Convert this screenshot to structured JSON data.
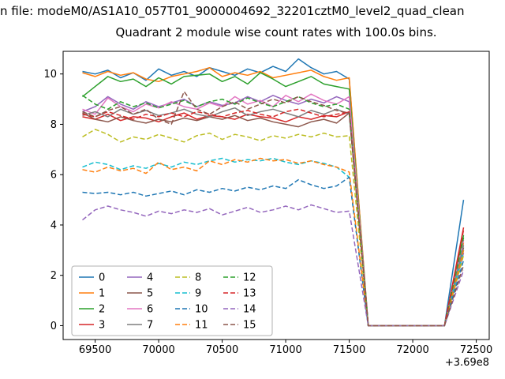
{
  "titles": {
    "suptitle": "n file: modeM0/AS1A10_057T01_9000004692_32201cztM0_level2_quad_clean",
    "title": "Quadrant 2 module wise count rates with 100.0s bins."
  },
  "chart_data": {
    "type": "line",
    "title": "Quadrant 2 module wise count rates with 100.0s bins.",
    "xlabel": "",
    "ylabel": "",
    "x_offset": "+3.69e8",
    "xlim": [
      69248,
      72602
    ],
    "ylim": [
      -0.55,
      10.9
    ],
    "x_ticks": [
      69500,
      70000,
      70500,
      71000,
      71500,
      72000,
      72500
    ],
    "y_ticks": [
      0,
      2,
      4,
      6,
      8,
      10
    ],
    "grid": false,
    "legend_position": "lower left",
    "axis_color": "#000000",
    "x": [
      69400,
      69500,
      69600,
      69700,
      69800,
      69900,
      70000,
      70100,
      70200,
      70300,
      70400,
      70500,
      70600,
      70700,
      70800,
      70900,
      71000,
      71100,
      71200,
      71300,
      71400,
      71500,
      71650,
      72250,
      72400
    ],
    "series": [
      {
        "name": "0",
        "color": "#1f77b4",
        "dash": false,
        "values": [
          10.1,
          10.0,
          10.15,
          9.85,
          10.05,
          9.75,
          10.2,
          9.95,
          10.1,
          9.9,
          10.25,
          10.1,
          9.95,
          10.2,
          10.05,
          10.3,
          10.1,
          10.6,
          10.25,
          10.0,
          10.1,
          9.8,
          0,
          0,
          5.0
        ]
      },
      {
        "name": "1",
        "color": "#ff7f0e",
        "dash": false,
        "values": [
          10.05,
          9.9,
          10.1,
          9.95,
          10.05,
          9.8,
          9.7,
          9.9,
          10.0,
          10.1,
          10.25,
          9.9,
          10.05,
          9.95,
          10.1,
          9.85,
          9.95,
          10.05,
          10.15,
          9.9,
          9.75,
          9.85,
          0,
          0,
          3.3
        ]
      },
      {
        "name": "2",
        "color": "#2ca02c",
        "dash": false,
        "values": [
          9.1,
          9.5,
          9.9,
          9.7,
          9.8,
          9.5,
          9.85,
          9.6,
          9.9,
          9.95,
          10.0,
          9.7,
          9.9,
          9.6,
          10.05,
          9.8,
          9.5,
          9.7,
          9.9,
          9.6,
          9.5,
          9.4,
          0,
          0,
          3.6
        ]
      },
      {
        "name": "3",
        "color": "#d62728",
        "dash": false,
        "values": [
          8.3,
          8.2,
          8.4,
          8.15,
          8.3,
          8.25,
          8.1,
          8.3,
          8.45,
          8.2,
          8.35,
          8.3,
          8.2,
          8.4,
          8.3,
          8.25,
          8.1,
          8.3,
          8.2,
          8.35,
          8.3,
          8.5,
          0,
          0,
          3.9
        ]
      },
      {
        "name": "4",
        "color": "#9467bd",
        "dash": false,
        "values": [
          8.5,
          8.7,
          9.1,
          8.8,
          8.6,
          8.9,
          8.7,
          8.85,
          9.0,
          8.7,
          8.9,
          8.75,
          8.85,
          9.1,
          8.9,
          9.15,
          8.95,
          8.8,
          9.0,
          8.85,
          9.1,
          8.9,
          0,
          0,
          2.9
        ]
      },
      {
        "name": "5",
        "color": "#8c564b",
        "dash": false,
        "values": [
          8.45,
          8.2,
          8.1,
          8.3,
          8.15,
          8.05,
          8.2,
          8.1,
          8.25,
          8.15,
          8.3,
          8.2,
          8.35,
          8.15,
          8.25,
          8.1,
          8.0,
          7.9,
          8.1,
          8.2,
          8.05,
          8.45,
          0,
          0,
          3.1
        ]
      },
      {
        "name": "6",
        "color": "#e377c2",
        "dash": false,
        "values": [
          8.6,
          8.4,
          9.05,
          8.7,
          8.5,
          8.8,
          8.65,
          8.9,
          8.7,
          8.6,
          8.85,
          8.7,
          9.1,
          8.8,
          8.95,
          8.7,
          9.15,
          8.9,
          9.2,
          8.95,
          8.8,
          9.1,
          0,
          0,
          3.4
        ]
      },
      {
        "name": "7",
        "color": "#7f7f7f",
        "dash": false,
        "values": [
          8.35,
          8.5,
          8.3,
          8.6,
          8.4,
          8.55,
          8.35,
          8.45,
          8.6,
          8.4,
          8.3,
          8.5,
          8.65,
          8.35,
          8.5,
          8.6,
          8.45,
          8.3,
          8.55,
          8.4,
          8.6,
          8.4,
          0,
          0,
          3.2
        ]
      },
      {
        "name": "8",
        "color": "#bcbd22",
        "dash": true,
        "values": [
          7.5,
          7.8,
          7.6,
          7.3,
          7.5,
          7.4,
          7.6,
          7.45,
          7.3,
          7.55,
          7.65,
          7.4,
          7.6,
          7.5,
          7.35,
          7.55,
          7.45,
          7.6,
          7.5,
          7.65,
          7.5,
          7.55,
          0,
          0,
          2.8
        ]
      },
      {
        "name": "9",
        "color": "#17becf",
        "dash": true,
        "values": [
          6.3,
          6.5,
          6.4,
          6.2,
          6.35,
          6.25,
          6.45,
          6.3,
          6.5,
          6.4,
          6.55,
          6.65,
          6.5,
          6.6,
          6.55,
          6.65,
          6.5,
          6.4,
          6.55,
          6.45,
          6.3,
          5.9,
          0,
          0,
          3.0
        ]
      },
      {
        "name": "10",
        "color": "#1f77b4",
        "dash": true,
        "values": [
          5.3,
          5.25,
          5.3,
          5.2,
          5.3,
          5.15,
          5.25,
          5.35,
          5.2,
          5.4,
          5.3,
          5.45,
          5.35,
          5.5,
          5.4,
          5.55,
          5.45,
          5.8,
          5.6,
          5.45,
          5.55,
          5.9,
          0,
          0,
          2.6
        ]
      },
      {
        "name": "11",
        "color": "#ff7f0e",
        "dash": true,
        "values": [
          6.2,
          6.1,
          6.3,
          6.15,
          6.25,
          6.05,
          6.5,
          6.2,
          6.3,
          6.15,
          6.55,
          6.4,
          6.6,
          6.5,
          6.65,
          6.55,
          6.6,
          6.45,
          6.55,
          6.4,
          6.3,
          6.1,
          0,
          0,
          3.0
        ]
      },
      {
        "name": "12",
        "color": "#2ca02c",
        "dash": true,
        "values": [
          9.15,
          8.8,
          8.6,
          8.9,
          8.7,
          8.85,
          8.65,
          8.8,
          8.95,
          8.7,
          8.9,
          9.0,
          8.8,
          9.05,
          8.85,
          8.7,
          8.9,
          9.1,
          8.85,
          8.7,
          8.8,
          8.6,
          0,
          0,
          3.5
        ]
      },
      {
        "name": "13",
        "color": "#d62728",
        "dash": true,
        "values": [
          8.4,
          8.3,
          8.5,
          8.35,
          8.2,
          8.4,
          8.3,
          8.45,
          8.3,
          8.5,
          8.4,
          8.3,
          8.45,
          8.55,
          8.4,
          8.3,
          8.5,
          8.6,
          8.45,
          8.3,
          8.4,
          8.5,
          0,
          0,
          3.8
        ]
      },
      {
        "name": "14",
        "color": "#9467bd",
        "dash": true,
        "values": [
          4.2,
          4.6,
          4.75,
          4.6,
          4.5,
          4.35,
          4.55,
          4.45,
          4.6,
          4.5,
          4.65,
          4.4,
          4.55,
          4.7,
          4.5,
          4.6,
          4.75,
          4.6,
          4.8,
          4.65,
          4.5,
          4.55,
          0,
          0,
          2.2
        ]
      },
      {
        "name": "15",
        "color": "#8c564b",
        "dash": true,
        "values": [
          8.5,
          8.3,
          8.55,
          8.7,
          8.4,
          8.6,
          8.2,
          8.0,
          9.3,
          8.6,
          8.4,
          8.7,
          8.9,
          8.6,
          8.8,
          9.0,
          8.85,
          9.1,
          8.9,
          8.75,
          8.55,
          8.45,
          0,
          0,
          2.4
        ]
      }
    ]
  }
}
